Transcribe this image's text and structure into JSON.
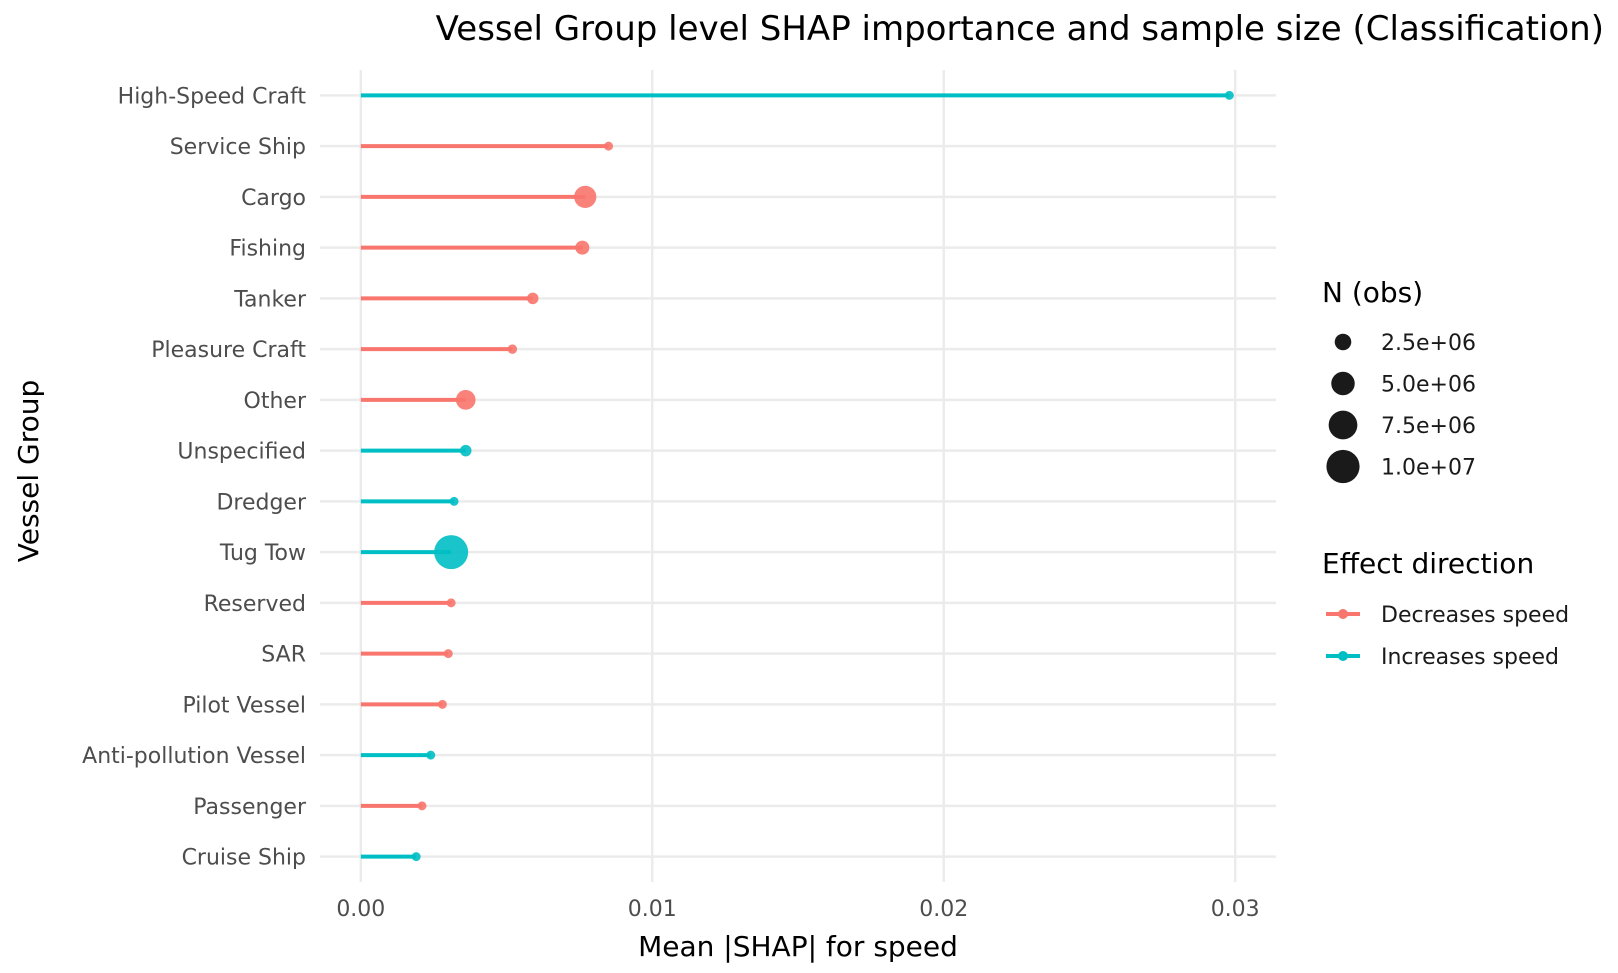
{
  "chart_data": {
    "type": "lollipop",
    "title": "Vessel Group level SHAP importance and sample size (Classification)",
    "xlabel": "Mean |SHAP| for speed",
    "ylabel": "Vessel Group",
    "xlim": [
      -0.0014,
      0.0314
    ],
    "x_ticks": [
      0.0,
      0.01,
      0.02,
      0.03
    ],
    "x_tick_labels": [
      "0.00",
      "0.01",
      "0.02",
      "0.03"
    ],
    "grid": true,
    "categories": [
      "High-Speed Craft",
      "Service Ship",
      "Cargo",
      "Fishing",
      "Tanker",
      "Pleasure Craft",
      "Other",
      "Unspecified",
      "Dredger",
      "Tug Tow",
      "Reserved",
      "SAR",
      "Pilot Vessel",
      "Anti-pollution Vessel",
      "Passenger",
      "Cruise Ship"
    ],
    "points": [
      {
        "group": "High-Speed Craft",
        "value": 0.0298,
        "n": 400000,
        "direction": "Increases speed"
      },
      {
        "group": "Service Ship",
        "value": 0.0085,
        "n": 50000,
        "direction": "Decreases speed"
      },
      {
        "group": "Cargo",
        "value": 0.0077,
        "n": 4500000,
        "direction": "Decreases speed"
      },
      {
        "group": "Fishing",
        "value": 0.0076,
        "n": 1800000,
        "direction": "Decreases speed"
      },
      {
        "group": "Tanker",
        "value": 0.0059,
        "n": 1200000,
        "direction": "Decreases speed"
      },
      {
        "group": "Pleasure Craft",
        "value": 0.0052,
        "n": 800000,
        "direction": "Decreases speed"
      },
      {
        "group": "Other",
        "value": 0.0036,
        "n": 3500000,
        "direction": "Decreases speed"
      },
      {
        "group": "Unspecified",
        "value": 0.0036,
        "n": 1200000,
        "direction": "Increases speed"
      },
      {
        "group": "Dredger",
        "value": 0.0032,
        "n": 300000,
        "direction": "Increases speed"
      },
      {
        "group": "Tug Tow",
        "value": 0.0031,
        "n": 10500000,
        "direction": "Increases speed"
      },
      {
        "group": "Reserved",
        "value": 0.0031,
        "n": 200000,
        "direction": "Decreases speed"
      },
      {
        "group": "SAR",
        "value": 0.003,
        "n": 300000,
        "direction": "Decreases speed"
      },
      {
        "group": "Pilot Vessel",
        "value": 0.0028,
        "n": 250000,
        "direction": "Decreases speed"
      },
      {
        "group": "Anti-pollution Vessel",
        "value": 0.0024,
        "n": 600000,
        "direction": "Increases speed"
      },
      {
        "group": "Passenger",
        "value": 0.0021,
        "n": 500000,
        "direction": "Decreases speed"
      },
      {
        "group": "Cruise Ship",
        "value": 0.0019,
        "n": 600000,
        "direction": "Increases speed"
      }
    ],
    "legend_size": {
      "title": "N (obs)",
      "items": [
        {
          "label": "2.5e+06",
          "n": 2500000
        },
        {
          "label": "5.0e+06",
          "n": 5000000
        },
        {
          "label": "7.5e+06",
          "n": 7500000
        },
        {
          "label": "1.0e+07",
          "n": 10000000
        }
      ]
    },
    "legend_color": {
      "title": "Effect direction",
      "items": [
        {
          "label": "Decreases speed",
          "color": "#F8766D"
        },
        {
          "label": "Increases speed",
          "color": "#00BFC4"
        }
      ]
    },
    "legend_placement": "right"
  }
}
